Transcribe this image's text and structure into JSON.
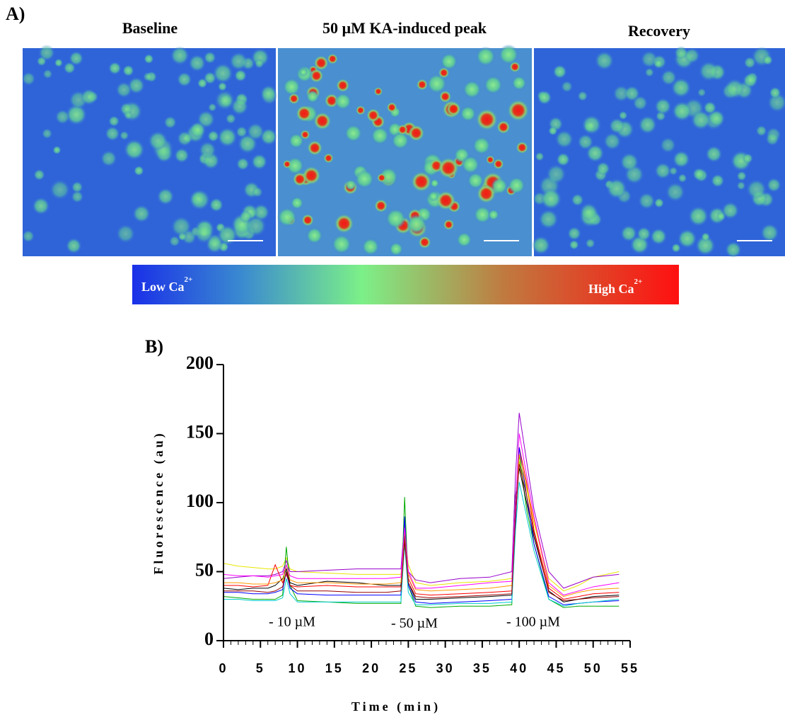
{
  "panel_a": {
    "label": "A)",
    "titles": [
      "Baseline",
      "50 µM KA-induced peak",
      "Recovery"
    ],
    "colorbar": {
      "low": "Low Ca",
      "low_sup": "2+",
      "high": "High Ca",
      "high_sup": "2+"
    }
  },
  "chart_data": {
    "type": "line",
    "title": "B)",
    "x_label": "Time (min)",
    "y_label": "Fluorescence (au)",
    "annotations": [
      "- 10 µM",
      "- 50 µM",
      "- 100 µM"
    ],
    "xlim": [
      0,
      55
    ],
    "ylim": [
      0,
      200
    ],
    "xticks": [
      0,
      5,
      10,
      15,
      20,
      25,
      30,
      35,
      40,
      45,
      50,
      55
    ],
    "xminorticks": [
      1,
      2,
      3,
      4,
      6,
      7,
      8,
      9,
      11,
      12,
      13,
      14,
      16,
      17,
      18,
      19,
      21,
      22,
      23,
      24,
      26,
      27,
      28,
      29,
      31,
      32,
      33,
      34,
      36,
      37,
      38,
      39,
      41,
      42,
      43,
      44,
      46,
      47,
      48,
      49,
      51,
      52,
      53,
      54
    ],
    "yticks": [
      0,
      50,
      100,
      150,
      200
    ],
    "x": [
      0,
      2,
      4,
      6,
      7,
      8,
      8.5,
      9,
      10,
      14,
      18,
      22,
      24,
      24.5,
      25,
      26,
      28,
      32,
      36,
      39,
      39.5,
      40,
      41,
      42,
      44,
      46,
      48,
      50,
      53.5
    ],
    "series": [
      {
        "color": "#e6e600",
        "values": [
          56,
          54,
          53,
          52,
          52,
          54,
          60,
          52,
          50,
          49,
          48,
          48,
          48,
          80,
          55,
          42,
          40,
          42,
          43,
          45,
          90,
          130,
          110,
          85,
          45,
          36,
          40,
          46,
          50
        ]
      },
      {
        "color": "#9900cc",
        "values": [
          45,
          46,
          47,
          47,
          48,
          50,
          58,
          50,
          50,
          51,
          52,
          52,
          52,
          85,
          50,
          44,
          42,
          45,
          46,
          50,
          120,
          165,
          130,
          95,
          50,
          38,
          42,
          46,
          48
        ]
      },
      {
        "color": "#00aa00",
        "values": [
          32,
          31,
          30,
          30,
          30,
          33,
          68,
          40,
          29,
          28,
          27,
          27,
          27,
          104,
          40,
          25,
          24,
          25,
          25,
          26,
          102,
          135,
          95,
          70,
          30,
          24,
          25,
          25,
          25
        ]
      },
      {
        "color": "#ff0000",
        "values": [
          40,
          40,
          39,
          40,
          55,
          42,
          48,
          40,
          39,
          40,
          39,
          39,
          39,
          75,
          45,
          34,
          33,
          34,
          35,
          36,
          95,
          140,
          115,
          80,
          38,
          30,
          32,
          34,
          35
        ]
      },
      {
        "color": "#000000",
        "values": [
          38,
          37,
          38,
          38,
          40,
          45,
          52,
          42,
          40,
          43,
          42,
          40,
          40,
          78,
          42,
          30,
          30,
          31,
          32,
          33,
          105,
          125,
          100,
          75,
          36,
          28,
          30,
          32,
          33
        ]
      },
      {
        "color": "#0000ff",
        "values": [
          35,
          35,
          34,
          34,
          35,
          37,
          50,
          38,
          34,
          33,
          33,
          33,
          33,
          90,
          40,
          28,
          27,
          28,
          29,
          30,
          85,
          140,
          105,
          70,
          32,
          26,
          27,
          28,
          29
        ]
      },
      {
        "color": "#ff9900",
        "values": [
          42,
          42,
          41,
          41,
          42,
          44,
          55,
          44,
          42,
          42,
          41,
          41,
          42,
          80,
          48,
          37,
          36,
          37,
          38,
          40,
          100,
          135,
          112,
          88,
          40,
          32,
          35,
          37,
          38
        ]
      },
      {
        "color": "#ff00ff",
        "values": [
          48,
          47,
          47,
          46,
          47,
          48,
          55,
          47,
          45,
          45,
          45,
          45,
          46,
          82,
          50,
          38,
          38,
          40,
          42,
          43,
          98,
          150,
          120,
          90,
          42,
          33,
          36,
          39,
          42
        ]
      },
      {
        "color": "#00cccc",
        "values": [
          30,
          30,
          29,
          29,
          29,
          31,
          45,
          34,
          28,
          28,
          28,
          28,
          28,
          70,
          35,
          26,
          26,
          27,
          27,
          28,
          80,
          115,
          90,
          65,
          30,
          25,
          27,
          28,
          30
        ]
      },
      {
        "color": "#990000",
        "values": [
          36,
          36,
          36,
          35,
          36,
          39,
          50,
          40,
          36,
          36,
          35,
          35,
          36,
          72,
          42,
          32,
          31,
          32,
          33,
          34,
          90,
          128,
          105,
          78,
          35,
          29,
          30,
          31,
          32
        ]
      }
    ]
  }
}
